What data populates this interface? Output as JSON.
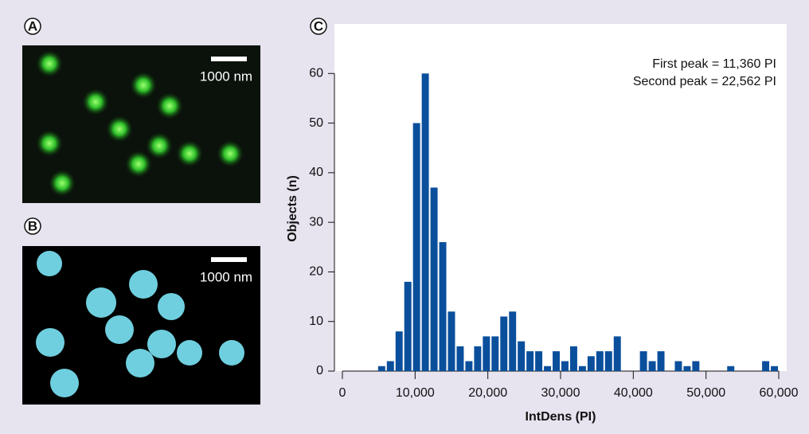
{
  "panels": [
    {
      "label": "A",
      "scale_bar": "1000 nm"
    },
    {
      "label": "B",
      "scale_bar": "1000 nm"
    },
    {
      "label": "C"
    }
  ],
  "chart_data": {
    "type": "histogram",
    "xlabel": "IntDens (PI)",
    "ylabel": "Objects (n)",
    "annotations": [
      "First peak = 11,360 PI",
      "Second peak = 22,562 PI"
    ],
    "color": "#0a4f9c",
    "bins": [
      4800,
      6000,
      7200,
      8400,
      9600,
      10800,
      12000,
      13200,
      14400,
      15600,
      16800,
      18000,
      19200,
      20400,
      21600,
      22800,
      24000,
      25200,
      26400,
      27600,
      28800,
      30000,
      31200,
      32400,
      33600,
      34800,
      36000,
      37200,
      38400,
      39600,
      40800,
      42000,
      43200,
      44400,
      45600,
      46800,
      48000,
      49200,
      50400,
      51600,
      52800,
      54000,
      55200,
      56400,
      57600,
      58800,
      60000
    ],
    "counts": [
      1,
      2,
      8,
      18,
      50,
      60,
      37,
      26,
      12,
      5,
      2,
      5,
      7,
      7,
      11,
      12,
      6,
      4,
      4,
      1,
      4,
      2,
      5,
      1,
      3,
      4,
      4,
      7,
      0,
      0,
      4,
      2,
      4,
      0,
      2,
      1,
      2,
      0,
      0,
      0,
      1,
      0,
      0,
      0,
      2,
      1
    ],
    "xlim": [
      0,
      60000
    ],
    "xticks": [
      0,
      {
        "value": 10000,
        "label": "10,000"
      },
      {
        "value": 20000,
        "label": "20,000"
      },
      {
        "value": 30000,
        "label": "30,000"
      },
      {
        "value": 40000,
        "label": "40,000"
      },
      {
        "value": 50000,
        "label": "50,000"
      },
      {
        "value": 60000,
        "label": "60,000"
      }
    ],
    "ylim": [
      0,
      70
    ],
    "yticks": [
      0,
      10,
      20,
      30,
      40,
      50,
      60
    ]
  }
}
